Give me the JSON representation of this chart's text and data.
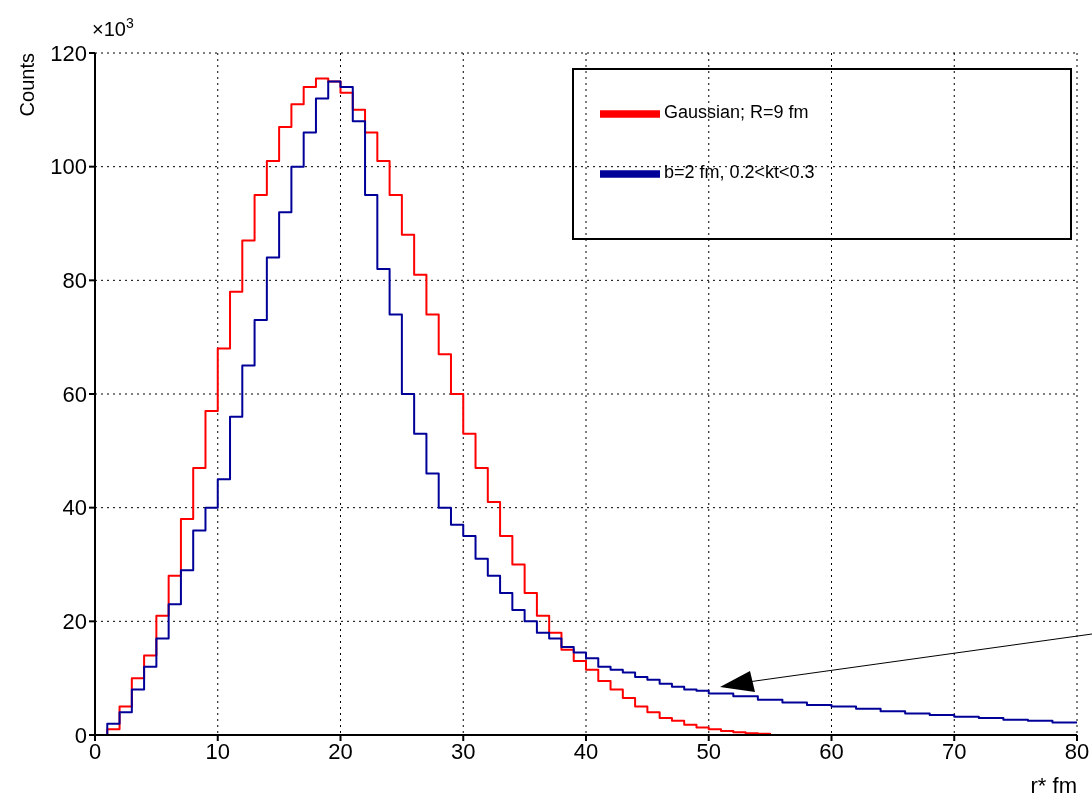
{
  "chart_data": {
    "type": "step",
    "xlabel": "r* fm",
    "ylabel": "Counts",
    "annotations": [
      "×10$^{3}$"
    ],
    "xlim": [
      0,
      80
    ],
    "xticks": [
      0,
      10,
      20,
      30,
      40,
      50,
      60,
      70,
      80
    ],
    "ylim": [
      0,
      120
    ],
    "yticks": [
      0,
      20,
      40,
      60,
      80,
      100,
      120
    ],
    "grid": true,
    "legend": "top right",
    "series": [
      {
        "name": "Gaussian; R=9 fm",
        "color": "#ff0000",
        "x": [
          0,
          1,
          2,
          3,
          4,
          5,
          6,
          7,
          8,
          9,
          10,
          11,
          12,
          13,
          14,
          15,
          16,
          17,
          18,
          19,
          20,
          21,
          22,
          23,
          24,
          25,
          26,
          27,
          28,
          29,
          30,
          31,
          32,
          33,
          34,
          35,
          36,
          37,
          38,
          39,
          40,
          41,
          42,
          43,
          44,
          45,
          46,
          47,
          48,
          49,
          50,
          51,
          52,
          53,
          54,
          55
        ],
        "values": [
          0,
          1,
          5,
          10,
          14,
          21,
          28,
          38,
          47,
          57,
          68,
          78,
          87,
          95,
          101,
          107,
          111,
          114,
          115.5,
          115,
          113,
          110,
          106,
          101,
          95,
          88,
          81,
          74,
          67,
          60,
          53,
          47,
          41,
          35,
          30,
          25,
          21,
          18,
          15,
          13,
          11.5,
          9.5,
          8,
          6.5,
          5,
          4,
          3,
          2.5,
          1.8,
          1.3,
          1,
          0.7,
          0.5,
          0.3,
          0.2,
          0
        ]
      },
      {
        "name": "b=2 fm, 0.2<kt<0.3",
        "color": "#000099",
        "x": [
          0,
          1,
          2,
          3,
          4,
          5,
          6,
          7,
          8,
          9,
          10,
          11,
          12,
          13,
          14,
          15,
          16,
          17,
          18,
          19,
          20,
          21,
          22,
          23,
          24,
          25,
          26,
          27,
          28,
          29,
          30,
          31,
          32,
          33,
          34,
          35,
          36,
          37,
          38,
          39,
          40,
          41,
          42,
          43,
          44,
          45,
          46,
          47,
          48,
          49,
          50,
          52,
          54,
          56,
          58,
          60,
          62,
          64,
          66,
          68,
          70,
          72,
          74,
          76,
          78,
          80
        ],
        "values": [
          0,
          2,
          4,
          8,
          12,
          17,
          23,
          29,
          36,
          40,
          45,
          56,
          65,
          73,
          84,
          92,
          100,
          106,
          112,
          115,
          114,
          108,
          95,
          82,
          74,
          60,
          53,
          46,
          40,
          37,
          35,
          31,
          28,
          25,
          22,
          20,
          18,
          17,
          15.5,
          14.5,
          13.5,
          12,
          11.5,
          11,
          10.2,
          9.7,
          9,
          8.5,
          8,
          7.8,
          7.3,
          6.8,
          6.2,
          5.7,
          5.3,
          5,
          4.6,
          4.2,
          3.8,
          3.5,
          3.2,
          3,
          2.7,
          2.5,
          2.2,
          2.1
        ]
      }
    ]
  }
}
